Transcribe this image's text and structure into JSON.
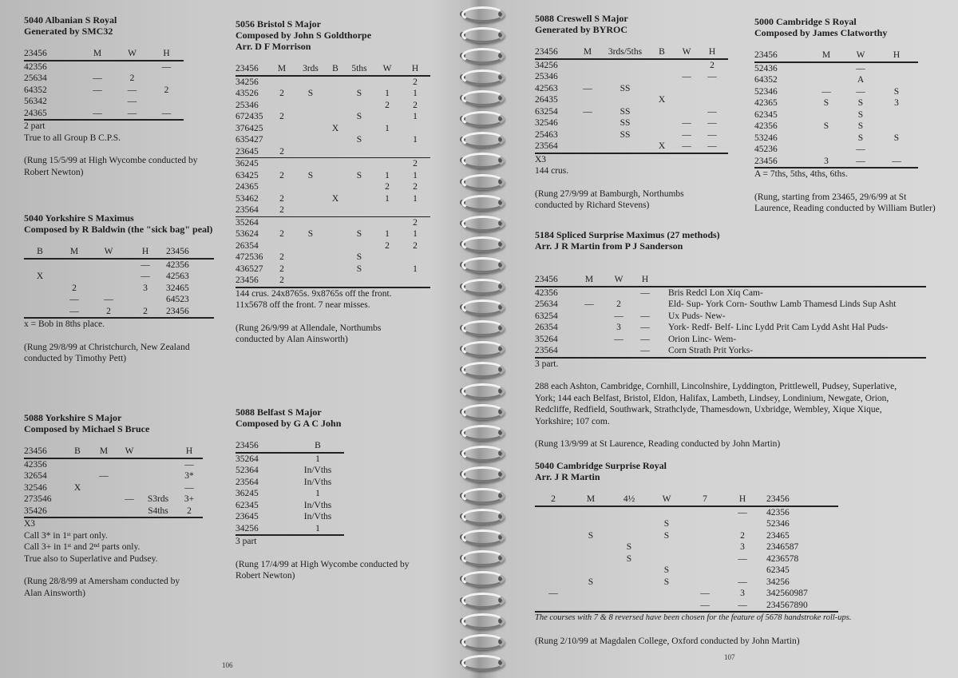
{
  "pages": {
    "left_number": "106",
    "right_number": "107"
  },
  "compositions": [
    {
      "id": "albanian",
      "title": [
        "5040 Albanian S Royal",
        "Generated by SMC32"
      ],
      "headers": [
        "23456",
        "M",
        "W",
        "H"
      ],
      "rows": [
        [
          "42356",
          "",
          "",
          "—"
        ],
        [
          "25634",
          "—",
          "2",
          ""
        ],
        [
          "64352",
          "—",
          "—",
          "2"
        ],
        [
          "56342",
          "",
          "—",
          ""
        ],
        [
          "24365",
          "—",
          "—",
          "—"
        ]
      ],
      "separators_after": [],
      "notes": [
        "2 part",
        "True to all Group B C.P.S."
      ],
      "rung": [
        "(Rung 15/5/99 at High Wycombe conducted by",
        "Robert Newton)"
      ]
    },
    {
      "id": "yorkshire-maximus",
      "title": [
        "5040 Yorkshire S Maximus",
        "Composed by R Baldwin (the \"sick bag\" peal)"
      ],
      "headers": [
        "B",
        "M",
        "W",
        "H",
        "23456"
      ],
      "rows": [
        [
          "",
          "",
          "",
          "—",
          "42356"
        ],
        [
          "X",
          "",
          "",
          "—",
          "42563"
        ],
        [
          "",
          "2",
          "",
          "3",
          "32465"
        ],
        [
          "",
          "—",
          "—",
          "",
          "64523"
        ],
        [
          "",
          "—",
          "2",
          "2",
          "23456"
        ]
      ],
      "separators_after": [],
      "notes": [
        "x = Bob in 8ths place."
      ],
      "rung": [
        "(Rung 29/8/99 at Christchurch, New Zealand",
        "conducted by Timothy Pett)"
      ]
    },
    {
      "id": "yorkshire-major",
      "title": [
        "5088 Yorkshire S Major",
        "Composed by Michael S Bruce"
      ],
      "headers": [
        "23456",
        "B",
        "M",
        "W",
        "",
        "H"
      ],
      "rows": [
        [
          "42356",
          "",
          "",
          "",
          "",
          "—"
        ],
        [
          "32654",
          "",
          "—",
          "",
          "",
          "3*"
        ],
        [
          "32546",
          "X",
          "",
          "",
          "",
          "—"
        ],
        [
          "273546",
          "",
          "",
          "—",
          "S3rds",
          "3+"
        ],
        [
          "35426",
          "",
          "",
          "",
          "S4ths",
          "2"
        ]
      ],
      "separators_after": [],
      "notes": [
        "X3",
        "Call 3* in 1ˢᵗ part only.",
        "Call 3+ in 1ˢᵗ and 2ⁿᵈ parts only.",
        "True also to Superlative and Pudsey."
      ],
      "rung": [
        "(Rung 28/8/99 at Amersham conducted by",
        "Alan Ainsworth)"
      ]
    },
    {
      "id": "bristol",
      "title": [
        "5056 Bristol S Major",
        "Composed by John S Goldthorpe",
        "Arr. D F Morrison"
      ],
      "headers": [
        "23456",
        "M",
        "3rds",
        "B",
        "5ths",
        "W",
        "H"
      ],
      "rows": [
        [
          "34256",
          "",
          "",
          "",
          "",
          "",
          "2"
        ],
        [
          "43526",
          "2",
          "S",
          "",
          "S",
          "1",
          "1"
        ],
        [
          "25346",
          "",
          "",
          "",
          "",
          "2",
          "2"
        ],
        [
          "672435",
          "2",
          "",
          "",
          "S",
          "",
          "1"
        ],
        [
          "376425",
          "",
          "",
          "X",
          "",
          "1",
          ""
        ],
        [
          "635427",
          "",
          "",
          "",
          "S",
          "",
          "1"
        ],
        [
          "23645",
          "2",
          "",
          "",
          "",
          "",
          ""
        ],
        [
          "36245",
          "",
          "",
          "",
          "",
          "",
          "2"
        ],
        [
          "63425",
          "2",
          "S",
          "",
          "S",
          "1",
          "1"
        ],
        [
          "24365",
          "",
          "",
          "",
          "",
          "2",
          "2"
        ],
        [
          "53462",
          "2",
          "",
          "X",
          "",
          "1",
          "1"
        ],
        [
          "23564",
          "2",
          "",
          "",
          "",
          "",
          ""
        ],
        [
          "35264",
          "",
          "",
          "",
          "",
          "",
          "2"
        ],
        [
          "53624",
          "2",
          "S",
          "",
          "S",
          "1",
          "1"
        ],
        [
          "26354",
          "",
          "",
          "",
          "",
          "2",
          "2"
        ],
        [
          "472536",
          "2",
          "",
          "",
          "S",
          "",
          ""
        ],
        [
          "436527",
          "2",
          "",
          "",
          "S",
          "",
          "1"
        ],
        [
          "23456",
          "2",
          "",
          "",
          "",
          "",
          ""
        ]
      ],
      "separators_after": [
        6,
        11
      ],
      "notes": [
        "144 crus. 24x8765s. 9x8765s off the front.",
        "11x5678 off the front. 7 near misses."
      ],
      "rung": [
        "(Rung 26/9/99 at Allendale, Northumbs",
        "conducted by Alan Ainsworth)"
      ]
    },
    {
      "id": "belfast",
      "title": [
        "5088 Belfast S Major",
        "Composed by G A C John"
      ],
      "headers": [
        "23456",
        "B"
      ],
      "rows": [
        [
          "35264",
          "1"
        ],
        [
          "52364",
          "In/Vths"
        ],
        [
          "23564",
          "In/Vths"
        ],
        [
          "36245",
          "1"
        ],
        [
          "62345",
          "In/Vths"
        ],
        [
          "23645",
          "In/Vths"
        ],
        [
          "34256",
          "1"
        ]
      ],
      "separators_after": [],
      "notes": [
        "3 part"
      ],
      "rung": [
        "(Rung 17/4/99 at High Wycombe conducted by",
        "Robert Newton)"
      ]
    },
    {
      "id": "creswell",
      "title": [
        "5088 Creswell S Major",
        "Generated by BYROC"
      ],
      "headers": [
        "23456",
        "M",
        "3rds/5ths",
        "B",
        "W",
        "H"
      ],
      "rows": [
        [
          "34256",
          "",
          "",
          "",
          "",
          "2"
        ],
        [
          "25346",
          "",
          "",
          "",
          "—",
          "—"
        ],
        [
          "42563",
          "—",
          "SS",
          "",
          "",
          ""
        ],
        [
          "26435",
          "",
          "",
          "X",
          "",
          ""
        ],
        [
          "63254",
          "—",
          "SS",
          "",
          "",
          "—"
        ],
        [
          "32546",
          "",
          "SS",
          "",
          "—",
          "—"
        ],
        [
          "25463",
          "",
          "SS",
          "",
          "—",
          "—"
        ],
        [
          "23564",
          "",
          "",
          "X",
          "—",
          "—"
        ]
      ],
      "separators_after": [],
      "notes": [
        "X3",
        "144 crus."
      ],
      "rung": [
        "(Rung 27/9/99 at Bamburgh, Northumbs",
        "conducted by Richard Stevens)"
      ]
    },
    {
      "id": "cambridge-s-royal",
      "title": [
        "5000 Cambridge S Royal",
        "Composed by James Clatworthy"
      ],
      "headers": [
        "23456",
        "M",
        "W",
        "H"
      ],
      "rows": [
        [
          "52436",
          "",
          "—",
          ""
        ],
        [
          "64352",
          "",
          "A",
          ""
        ],
        [
          "52346",
          "—",
          "—",
          "S"
        ],
        [
          "42365",
          "S",
          "S",
          "3"
        ],
        [
          "62345",
          "",
          "S",
          ""
        ],
        [
          "42356",
          "S",
          "S",
          ""
        ],
        [
          "53246",
          "",
          "S",
          "S"
        ],
        [
          "45236",
          "",
          "—",
          ""
        ],
        [
          "23456",
          "3",
          "—",
          "—"
        ]
      ],
      "separators_after": [],
      "notes": [
        "A = 7ths, 5ths, 4ths, 6ths."
      ],
      "rung": [
        "(Rung, starting from 23465, 29/6/99 at St",
        "Laurence, Reading conducted by William Butler)"
      ]
    },
    {
      "id": "spliced",
      "title": [
        "5184 Spliced Surprise Maximus (27 methods)",
        "Arr. J R Martin from P J Sanderson"
      ],
      "headers": [
        "23456",
        "M",
        "W",
        "H",
        ""
      ],
      "rows": [
        [
          "42356",
          "",
          "",
          "—",
          "Bris Redcl Lon Xiq Cam-"
        ],
        [
          "25634",
          "—",
          "2",
          "",
          "Eld- Sup- York Corn- Southw Lamb Thamesd Linds Sup Asht"
        ],
        [
          "63254",
          "",
          "—",
          "—",
          "Ux Puds- New-"
        ],
        [
          "26354",
          "",
          "3",
          "—",
          "York- Redf- Belf- Linc Lydd Prit Cam Lydd Asht Hal Puds-"
        ],
        [
          "35264",
          "",
          "—",
          "—",
          "Orion Linc- Wem-"
        ],
        [
          "23564",
          "",
          "",
          "—",
          "Corn Strath Prit Yorks-"
        ]
      ],
      "separators_after": [],
      "notes": [
        "3 part.",
        "",
        "288 each Ashton, Cambridge, Cornhill, Lincolnshire, Lyddington, Prittlewell, Pudsey, Superlative,",
        "York; 144 each Belfast, Bristol, Eldon, Halifax, Lambeth, Lindsey, Londinium, Newgate, Orion,",
        "Redcliffe, Redfield, Southwark, Strathclyde, Thamesdown, Uxbridge, Wembley, Xique Xique,",
        "Yorkshire; 107 com."
      ],
      "rung": [
        "(Rung 13/9/99 at St Laurence, Reading conducted by John Martin)"
      ]
    },
    {
      "id": "cambridge-surprise-royal",
      "title": [
        "5040 Cambridge Surprise Royal",
        "Arr. J R Martin"
      ],
      "headers": [
        "2",
        "M",
        "4½",
        "W",
        "7",
        "H",
        "23456"
      ],
      "rows": [
        [
          "",
          "",
          "",
          "",
          "",
          "—",
          "42356"
        ],
        [
          "",
          "",
          "",
          "S",
          "",
          "",
          "52346"
        ],
        [
          "",
          "S",
          "",
          "S",
          "",
          "2",
          "23465"
        ],
        [
          "",
          "",
          "S",
          "",
          "",
          "3",
          "2346587"
        ],
        [
          "",
          "",
          "S",
          "",
          "",
          "—",
          "4236578"
        ],
        [
          "",
          "",
          "",
          "S",
          "",
          "",
          "62345"
        ],
        [
          "",
          "S",
          "",
          "S",
          "",
          "—",
          "34256"
        ],
        [
          "—",
          "",
          "",
          "",
          "—",
          "3",
          "342560987"
        ],
        [
          "",
          "",
          "",
          "",
          "—",
          "—",
          "234567890"
        ]
      ],
      "separators_after": [],
      "notes_italic": [
        "The courses with 7 & 8 reversed have been chosen for the feature of 5678 handstroke roll-ups."
      ],
      "rung": [
        "(Rung 2/10/99 at Magdalen College, Oxford conducted by John Martin)"
      ]
    }
  ]
}
